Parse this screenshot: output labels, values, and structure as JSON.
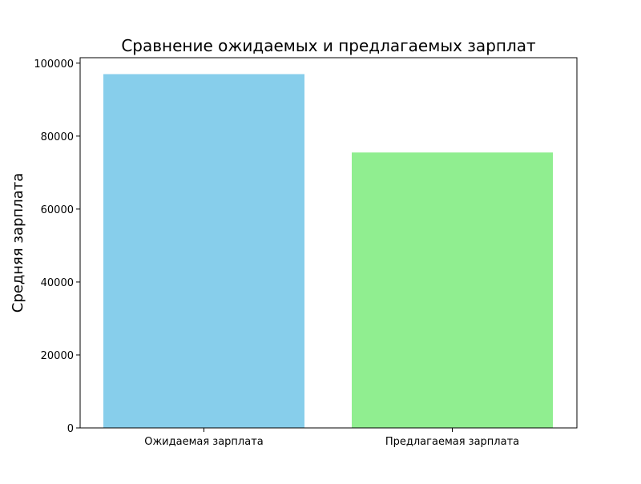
{
  "chart_data": {
    "type": "bar",
    "title": "Сравнение ожидаемых и предлагаемых зарплат",
    "xlabel": "",
    "ylabel": "Средняя зарплата",
    "categories": [
      "Ожидаемая зарплата",
      "Предлагаемая зарплата"
    ],
    "values": [
      97000,
      75500
    ],
    "bar_colors": [
      "#87ceeb",
      "#90ee90"
    ],
    "ylim": [
      0,
      101500
    ],
    "yticks": [
      0,
      20000,
      40000,
      60000,
      80000,
      100000
    ],
    "ytick_labels": [
      "0",
      "20000",
      "40000",
      "60000",
      "80000",
      "100000"
    ],
    "grid": false,
    "legend": "none"
  }
}
